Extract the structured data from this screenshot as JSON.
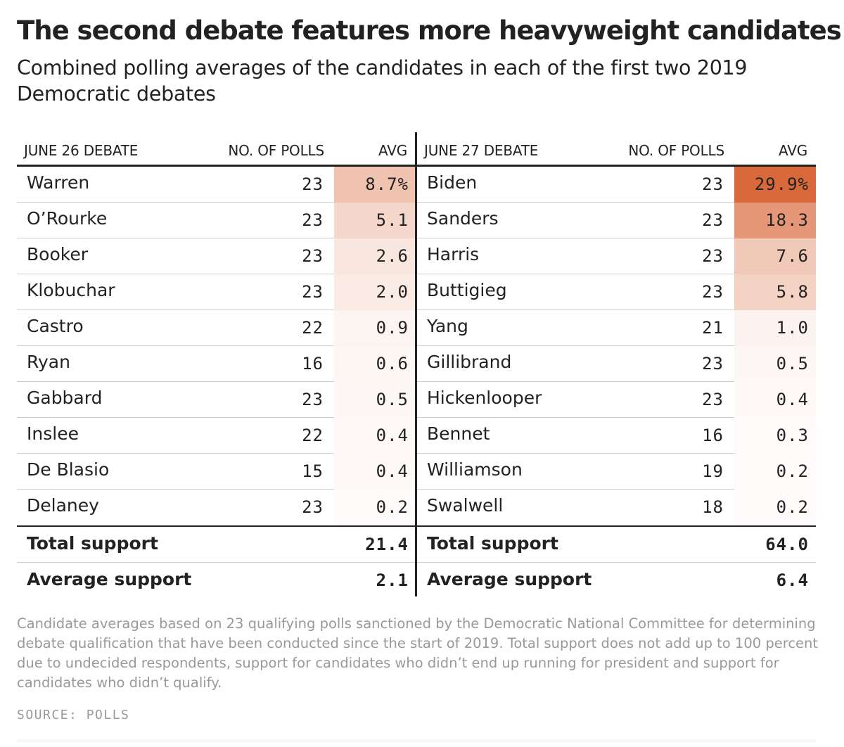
{
  "title": "The second debate features more heavyweight candidates",
  "subtitle": "Combined polling averages of the candidates in each of the first two 2019 Democratic debates",
  "colors": {
    "heat_max": "#d9683a",
    "text": "#222222",
    "muted": "#999999"
  },
  "chart_data": {
    "type": "table",
    "heat_scale_max": 29.9,
    "debates": [
      {
        "header": {
          "debate": "JUNE 26 DEBATE",
          "polls": "NO. OF POLLS",
          "avg": "AVG"
        },
        "rows": [
          {
            "name": "Warren",
            "polls": "23",
            "avg": "8.7%",
            "value": 8.7
          },
          {
            "name": "O’Rourke",
            "polls": "23",
            "avg": "5.1",
            "value": 5.1
          },
          {
            "name": "Booker",
            "polls": "23",
            "avg": "2.6",
            "value": 2.6
          },
          {
            "name": "Klobuchar",
            "polls": "23",
            "avg": "2.0",
            "value": 2.0
          },
          {
            "name": "Castro",
            "polls": "22",
            "avg": "0.9",
            "value": 0.9
          },
          {
            "name": "Ryan",
            "polls": "16",
            "avg": "0.6",
            "value": 0.6
          },
          {
            "name": "Gabbard",
            "polls": "23",
            "avg": "0.5",
            "value": 0.5
          },
          {
            "name": "Inslee",
            "polls": "22",
            "avg": "0.4",
            "value": 0.4
          },
          {
            "name": "De Blasio",
            "polls": "15",
            "avg": "0.4",
            "value": 0.4
          },
          {
            "name": "Delaney",
            "polls": "23",
            "avg": "0.2",
            "value": 0.2
          }
        ],
        "total": {
          "label": "Total support",
          "value": "21.4"
        },
        "average": {
          "label": "Average support",
          "value": "2.1"
        }
      },
      {
        "header": {
          "debate": "JUNE 27 DEBATE",
          "polls": "NO. OF POLLS",
          "avg": "AVG"
        },
        "rows": [
          {
            "name": "Biden",
            "polls": "23",
            "avg": "29.9%",
            "value": 29.9
          },
          {
            "name": "Sanders",
            "polls": "23",
            "avg": "18.3",
            "value": 18.3
          },
          {
            "name": "Harris",
            "polls": "23",
            "avg": "7.6",
            "value": 7.6
          },
          {
            "name": "Buttigieg",
            "polls": "23",
            "avg": "5.8",
            "value": 5.8
          },
          {
            "name": "Yang",
            "polls": "21",
            "avg": "1.0",
            "value": 1.0
          },
          {
            "name": "Gillibrand",
            "polls": "23",
            "avg": "0.5",
            "value": 0.5
          },
          {
            "name": "Hickenlooper",
            "polls": "23",
            "avg": "0.4",
            "value": 0.4
          },
          {
            "name": "Bennet",
            "polls": "16",
            "avg": "0.3",
            "value": 0.3
          },
          {
            "name": "Williamson",
            "polls": "19",
            "avg": "0.2",
            "value": 0.2
          },
          {
            "name": "Swalwell",
            "polls": "18",
            "avg": "0.2",
            "value": 0.2
          }
        ],
        "total": {
          "label": "Total support",
          "value": "64.0"
        },
        "average": {
          "label": "Average support",
          "value": "6.4"
        }
      }
    ]
  },
  "note": "Candidate averages based on 23 qualifying polls sanctioned by the Democratic National Committee for determining debate qualification that have been conducted since the start of 2019. Total support does not add up to 100 percent due to undecided respondents, support for candidates who didn’t end up running for president and support for candidates who didn’t qualify.",
  "source": "SOURCE: POLLS"
}
